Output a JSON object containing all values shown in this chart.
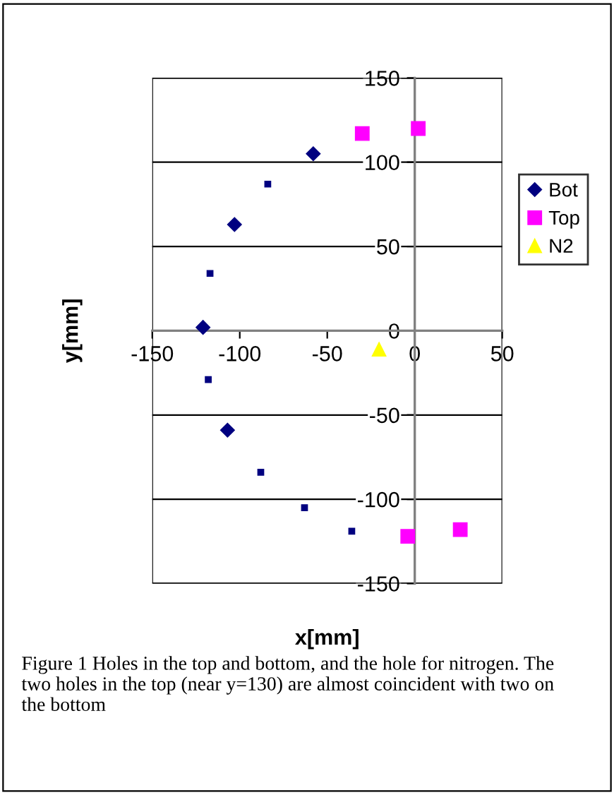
{
  "chart_data": {
    "type": "scatter",
    "xlabel": "x[mm]",
    "ylabel": "y[mm]",
    "series": [
      {
        "name": "Bot",
        "color": "#000080",
        "marker": "diamond",
        "x": [
          -58,
          -103,
          -121,
          -107
        ],
        "values": [
          105,
          63,
          2,
          -59
        ]
      },
      {
        "color": "#000080",
        "marker": "square",
        "x": [
          -84,
          -117,
          -118,
          -88,
          -63,
          -36
        ],
        "values": [
          87,
          34,
          -29,
          -84,
          -105,
          -119
        ]
      },
      {
        "name": "Top",
        "color": "#ff00ff",
        "marker": "square",
        "x": [
          -30,
          2,
          -4,
          26
        ],
        "values": [
          117,
          120,
          -122,
          -118
        ]
      },
      {
        "name": "N2",
        "color": "#ffff00",
        "marker": "triangle",
        "x": [
          -20.4
        ],
        "values": [
          -11
        ]
      }
    ],
    "xlim": [
      -150,
      50
    ],
    "xticks": [
      -150,
      -100,
      -50,
      0,
      50
    ],
    "ylim": [
      -150,
      150
    ],
    "yticks": [
      -150,
      -100,
      -50,
      0,
      50,
      100,
      150
    ],
    "grid": "y",
    "legend": "right",
    "annotations": [
      "Figure 1 Holes in the top and bottom, and the hole for nitrogen. The two holes in the top (near y=130) are almost coincident with two on the bottom"
    ]
  }
}
